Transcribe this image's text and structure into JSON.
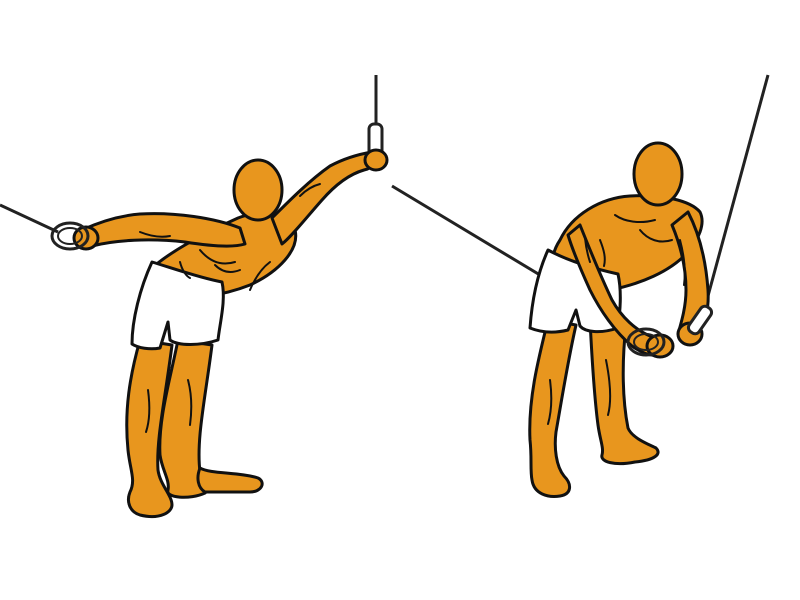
{
  "illustration": {
    "subject": "cable-reverse-fly-exercise",
    "colors": {
      "skin": "#e8961e",
      "outline": "#111111",
      "shorts": "#ffffff",
      "cable": "#222222",
      "background": "#ffffff"
    },
    "figures": [
      {
        "pose": "arms-extended-start"
      },
      {
        "pose": "arms-crossed-finish"
      }
    ]
  }
}
